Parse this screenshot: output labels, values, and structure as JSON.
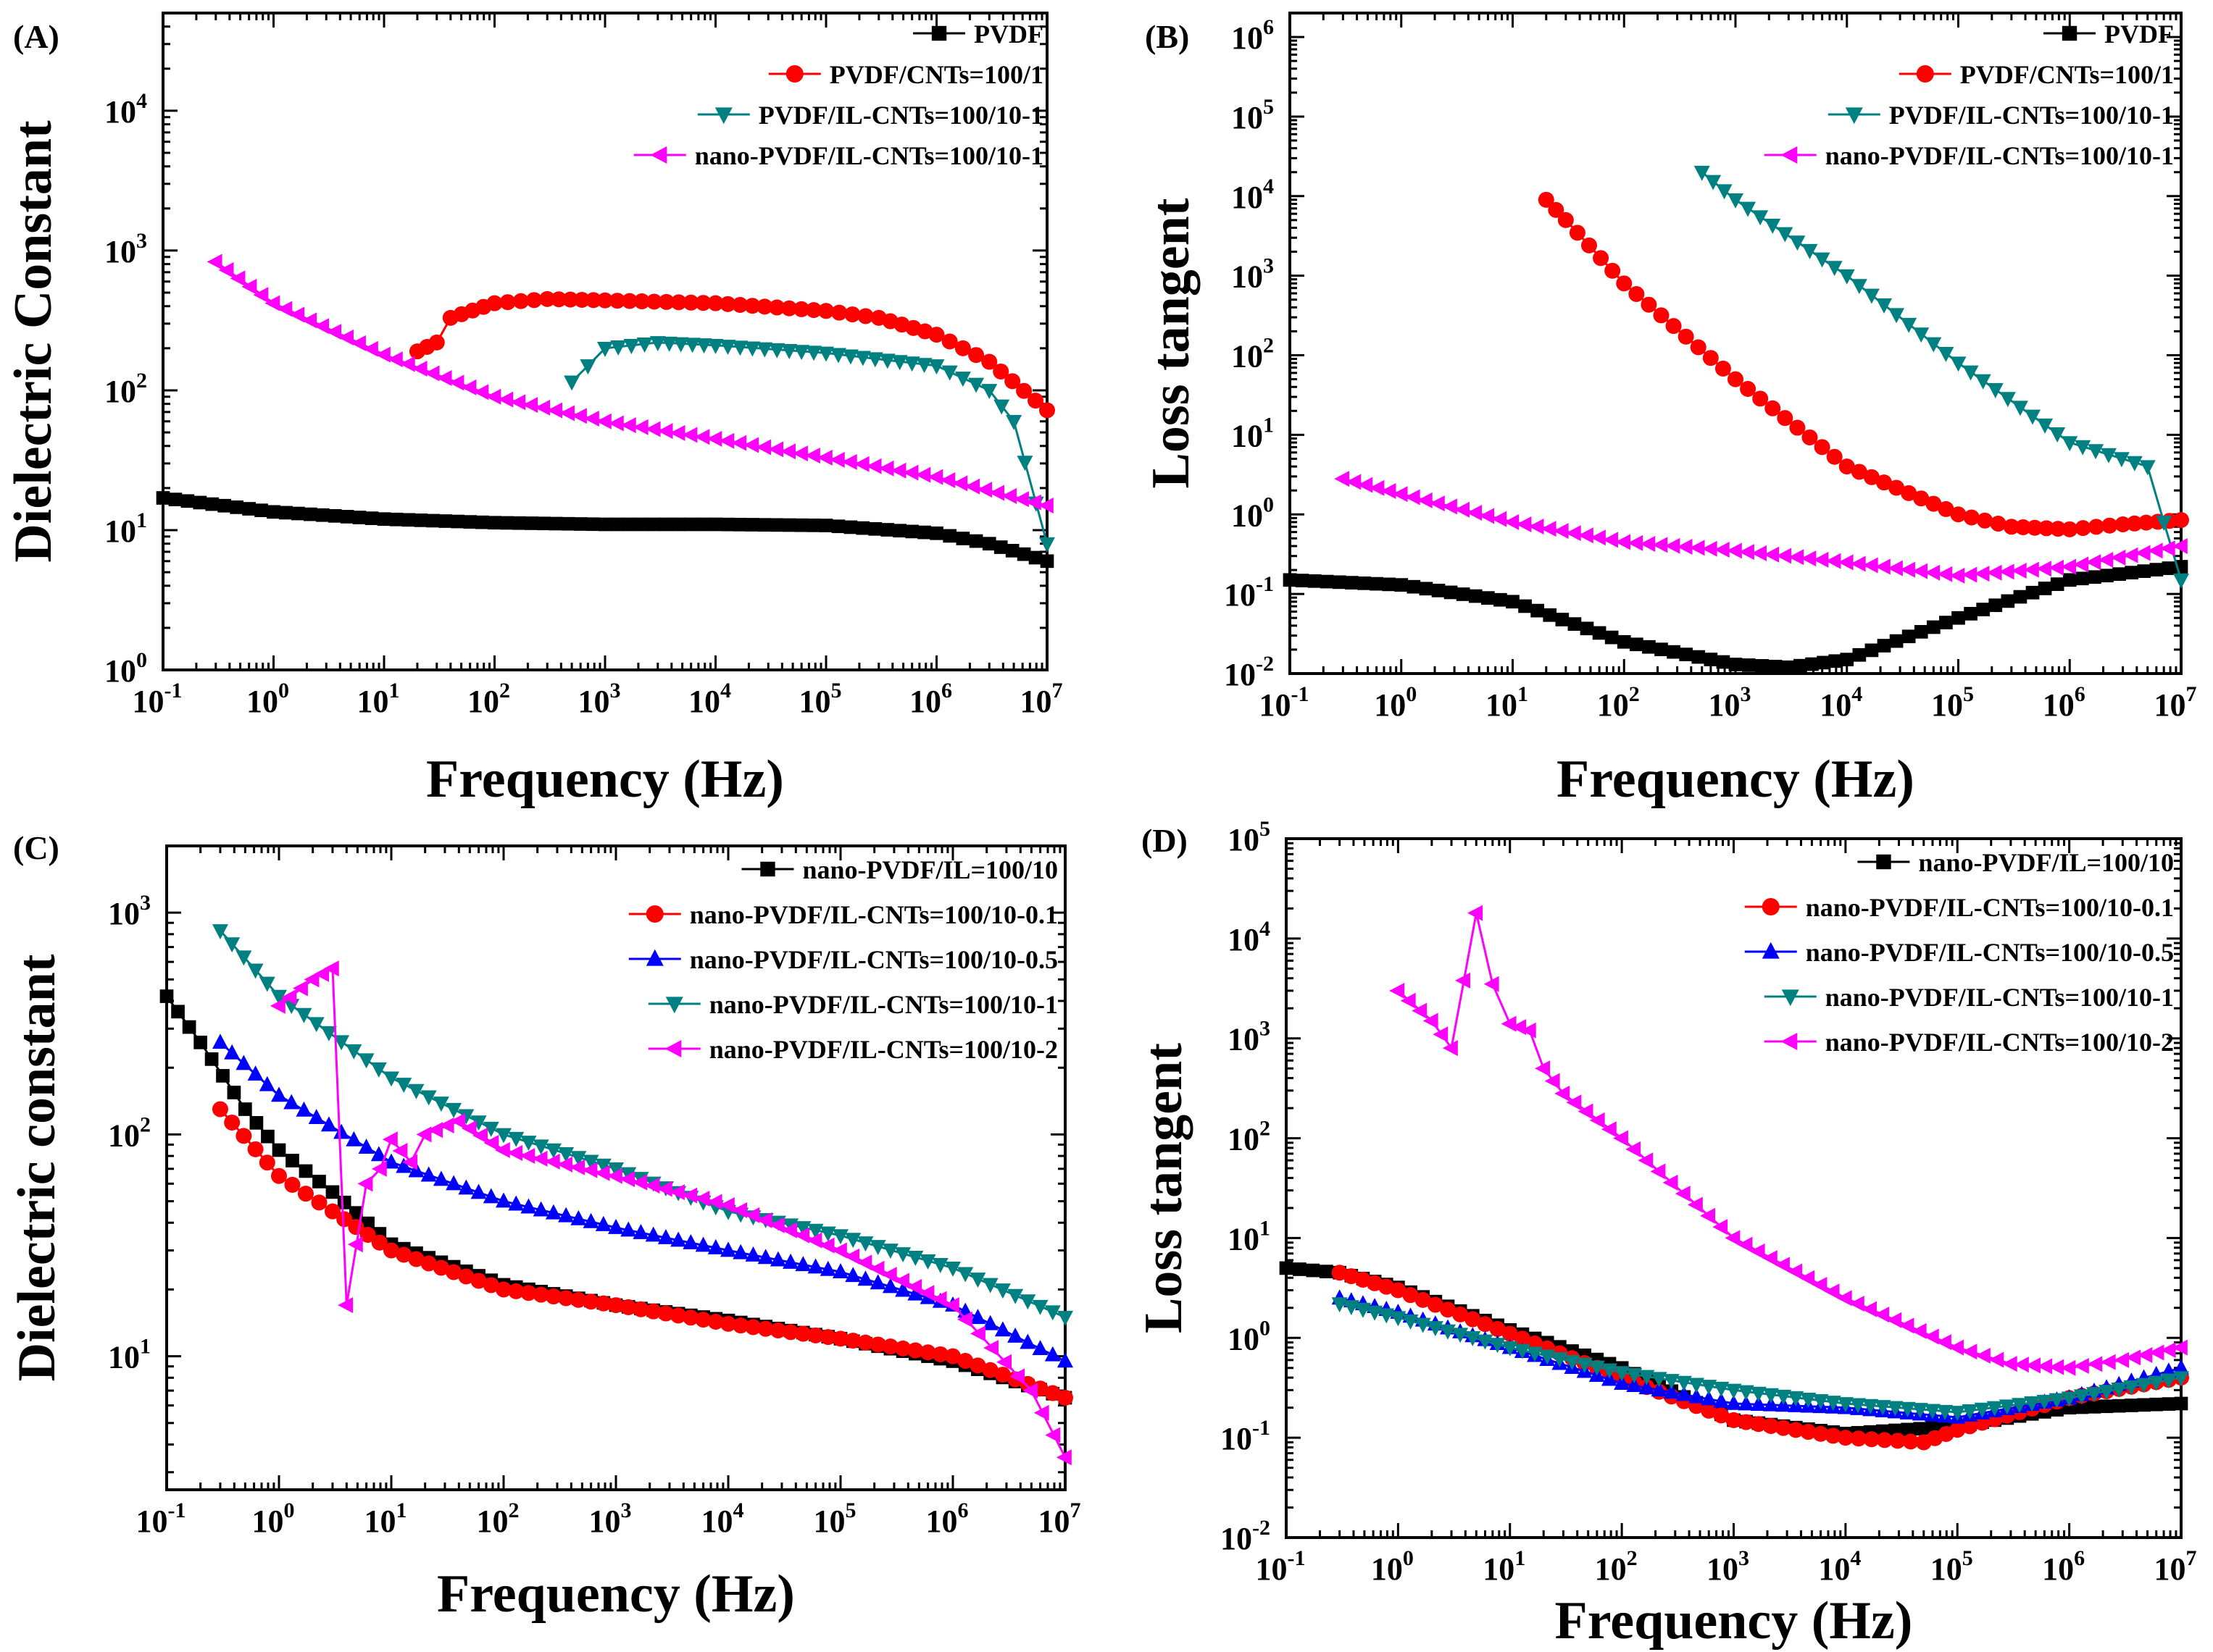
{
  "colors": {
    "black": "#000000",
    "red": "#ff0000",
    "blue": "#0000ff",
    "teal": "#008080",
    "magenta": "#ff00ff"
  },
  "chart_data": [
    {
      "id": "A",
      "label": "(A)",
      "type": "line",
      "xscale": "log",
      "yscale": "log",
      "xlim": [
        0.1,
        10000000
      ],
      "ylim": [
        1,
        50000
      ],
      "xticks_exp": [
        -1,
        0,
        1,
        2,
        3,
        4,
        5,
        6,
        7
      ],
      "yticks_exp": [
        0,
        1,
        2,
        3,
        4
      ],
      "xlabel": "Frequency (Hz)",
      "ylabel": "Dielectric Constant",
      "legend_position": "top-right",
      "series": [
        {
          "name": "PVDF",
          "color": "#000000",
          "marker": "square",
          "x": [
            0.1,
            1,
            10,
            100,
            1000,
            10000,
            100000,
            1000000,
            3000000,
            10000000
          ],
          "y": [
            17,
            13.5,
            12,
            11.3,
            11,
            11,
            10.8,
            9.5,
            8,
            6
          ]
        },
        {
          "name": "PVDF/CNTs=100/1",
          "color": "#ff0000",
          "marker": "circle",
          "x": [
            20,
            30,
            40,
            100,
            300,
            1000,
            10000,
            100000,
            300000,
            1000000,
            3000000,
            10000000
          ],
          "y": [
            190,
            220,
            330,
            420,
            450,
            440,
            420,
            370,
            330,
            250,
            160,
            72
          ]
        },
        {
          "name": "PVDF/IL-CNTs=100/10-1",
          "color": "#008080",
          "marker": "triangle-down",
          "x": [
            500,
            700,
            1000,
            3000,
            10000,
            100000,
            1000000,
            3000000,
            5000000,
            10000000
          ],
          "y": [
            115,
            150,
            200,
            220,
            210,
            185,
            150,
            100,
            60,
            8
          ]
        },
        {
          "name": "nano-PVDF/IL-CNTs=100/10-1",
          "color": "#ff00ff",
          "marker": "triangle-left",
          "x": [
            0.3,
            1,
            10,
            100,
            1000,
            10000,
            100000,
            1000000,
            10000000
          ],
          "y": [
            830,
            420,
            180,
            90,
            60,
            45,
            33,
            24,
            15
          ]
        }
      ]
    },
    {
      "id": "B",
      "label": "(B)",
      "type": "line",
      "xscale": "log",
      "yscale": "log",
      "xlim": [
        0.1,
        10000000
      ],
      "ylim": [
        0.01,
        2000000
      ],
      "xticks_exp": [
        -1,
        0,
        1,
        2,
        3,
        4,
        5,
        6,
        7
      ],
      "yticks_exp": [
        -2,
        -1,
        0,
        1,
        2,
        3,
        4,
        5,
        6
      ],
      "xlabel": "Frequency (Hz)",
      "ylabel": "Loss tangent",
      "legend_position": "top-right",
      "series": [
        {
          "name": "PVDF",
          "color": "#000000",
          "marker": "square",
          "x": [
            0.1,
            1,
            10,
            100,
            1000,
            3000,
            10000,
            100000,
            1000000,
            10000000
          ],
          "y": [
            0.15,
            0.13,
            0.08,
            0.025,
            0.013,
            0.012,
            0.015,
            0.05,
            0.15,
            0.22
          ]
        },
        {
          "name": "PVDF/CNTs=100/1",
          "color": "#ff0000",
          "marker": "circle",
          "x": [
            20,
            30,
            100,
            1000,
            10000,
            100000,
            300000,
            1000000,
            3000000,
            10000000
          ],
          "y": [
            9000,
            5000,
            800,
            50,
            4,
            1,
            0.7,
            0.65,
            0.75,
            0.85
          ]
        },
        {
          "name": "PVDF/IL-CNTs=100/10-1",
          "color": "#008080",
          "marker": "triangle-down",
          "x": [
            500,
            1000,
            10000,
            100000,
            1000000,
            5000000,
            7000000,
            10000000
          ],
          "y": [
            20000,
            9000,
            1000,
            80,
            8,
            4,
            0.8,
            0.15
          ]
        },
        {
          "name": "nano-PVDF/IL-CNTs=100/10-1",
          "color": "#ff00ff",
          "marker": "triangle-left",
          "x": [
            0.3,
            1,
            10,
            100,
            1000,
            10000,
            100000,
            1000000,
            10000000
          ],
          "y": [
            2.8,
            1.8,
            0.8,
            0.45,
            0.35,
            0.25,
            0.17,
            0.22,
            0.4
          ]
        }
      ]
    },
    {
      "id": "C",
      "label": "(C)",
      "type": "line",
      "xscale": "log",
      "yscale": "log",
      "xlim": [
        0.1,
        10000000
      ],
      "ylim": [
        2.5,
        2000
      ],
      "xticks_exp": [
        -1,
        0,
        1,
        2,
        3,
        4,
        5,
        6,
        7
      ],
      "yticks_exp": [
        1,
        2,
        3
      ],
      "xlabel": "Frequency (Hz)",
      "ylabel": "Dielectric constant",
      "legend_position": "top-right",
      "series": [
        {
          "name": "nano-PVDF/IL=100/10",
          "color": "#000000",
          "marker": "square",
          "x": [
            0.1,
            0.2,
            0.5,
            1,
            3,
            10,
            100,
            1000,
            10000,
            100000,
            1000000,
            10000000
          ],
          "y": [
            420,
            260,
            130,
            85,
            55,
            32,
            21,
            17,
            14.5,
            12,
            9.5,
            6.5
          ]
        },
        {
          "name": "nano-PVDF/IL-CNTs=100/10-0.1",
          "color": "#ff0000",
          "marker": "circle",
          "x": [
            0.3,
            1,
            3,
            10,
            100,
            1000,
            10000,
            100000,
            1000000,
            10000000
          ],
          "y": [
            130,
            65,
            45,
            30,
            20,
            17,
            14,
            12,
            10,
            6.5
          ]
        },
        {
          "name": "nano-PVDF/IL-CNTs=100/10-0.5",
          "color": "#0000ff",
          "marker": "triangle-up",
          "x": [
            0.3,
            1,
            10,
            100,
            1000,
            10000,
            100000,
            1000000,
            10000000
          ],
          "y": [
            260,
            150,
            75,
            50,
            38,
            30,
            24,
            17,
            9.5
          ]
        },
        {
          "name": "nano-PVDF/IL-CNTs=100/10-1",
          "color": "#008080",
          "marker": "triangle-down",
          "x": [
            0.3,
            1,
            10,
            100,
            1000,
            10000,
            100000,
            1000000,
            10000000
          ],
          "y": [
            830,
            420,
            180,
            100,
            70,
            45,
            35,
            25,
            15
          ]
        },
        {
          "name": "nano-PVDF/IL-CNTs=100/10-2",
          "color": "#ff00ff",
          "marker": "triangle-left",
          "x": [
            1,
            2,
            3,
            4,
            6,
            8,
            10,
            15,
            20,
            40,
            100,
            1000,
            10000,
            100000,
            1000000,
            5000000,
            10000000
          ],
          "y": [
            380,
            500,
            560,
            17,
            60,
            70,
            95,
            75,
            100,
            115,
            85,
            65,
            48,
            30,
            17,
            7,
            3.5
          ]
        }
      ]
    },
    {
      "id": "D",
      "label": "(D)",
      "type": "line",
      "xscale": "log",
      "yscale": "log",
      "xlim": [
        0.1,
        10000000
      ],
      "ylim": [
        0.01,
        100000
      ],
      "xticks_exp": [
        -1,
        0,
        1,
        2,
        3,
        4,
        5,
        6,
        7
      ],
      "yticks_exp": [
        -2,
        -1,
        0,
        1,
        2,
        3,
        4,
        5
      ],
      "xlabel": "Frequency (Hz)",
      "ylabel": "Loss tangent",
      "legend_position": "top-right",
      "series": [
        {
          "name": "nano-PVDF/IL=100/10",
          "color": "#000000",
          "marker": "square",
          "x": [
            0.1,
            0.3,
            1,
            10,
            100,
            1000,
            10000,
            100000,
            1000000,
            10000000
          ],
          "y": [
            5,
            4.5,
            3.2,
            1.2,
            0.5,
            0.15,
            0.11,
            0.13,
            0.2,
            0.22
          ]
        },
        {
          "name": "nano-PVDF/IL-CNTs=100/10-0.1",
          "color": "#ff0000",
          "marker": "circle",
          "x": [
            0.3,
            1,
            10,
            100,
            1000,
            10000,
            50000,
            100000,
            1000000,
            10000000
          ],
          "y": [
            4.5,
            3,
            1.1,
            0.4,
            0.15,
            0.1,
            0.09,
            0.12,
            0.25,
            0.4
          ]
        },
        {
          "name": "nano-PVDF/IL-CNTs=100/10-0.5",
          "color": "#0000ff",
          "marker": "triangle-up",
          "x": [
            0.3,
            1,
            10,
            100,
            1000,
            10000,
            100000,
            1000000,
            10000000
          ],
          "y": [
            2.5,
            1.8,
            0.8,
            0.35,
            0.22,
            0.2,
            0.16,
            0.25,
            0.5
          ]
        },
        {
          "name": "nano-PVDF/IL-CNTs=100/10-1",
          "color": "#008080",
          "marker": "triangle-down",
          "x": [
            0.3,
            1,
            10,
            100,
            1000,
            10000,
            100000,
            1000000,
            10000000
          ],
          "y": [
            2.2,
            1.6,
            0.8,
            0.45,
            0.3,
            0.22,
            0.18,
            0.25,
            0.4
          ]
        },
        {
          "name": "nano-PVDF/IL-CNTs=100/10-2",
          "color": "#ff00ff",
          "marker": "triangle-left",
          "x": [
            1,
            2,
            3,
            5,
            7,
            10,
            15,
            20,
            30,
            100,
            1000,
            10000,
            100000,
            300000,
            1000000,
            3000000,
            10000000
          ],
          "y": [
            3000,
            1500,
            800,
            18000,
            3500,
            1400,
            1200,
            500,
            280,
            100,
            10,
            2.5,
            0.8,
            0.55,
            0.5,
            0.6,
            0.8
          ]
        }
      ]
    }
  ]
}
